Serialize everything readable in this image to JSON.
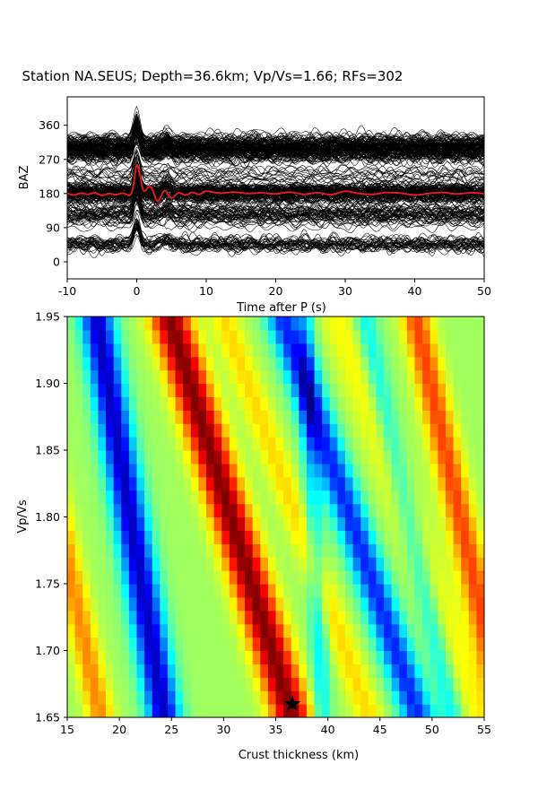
{
  "chart_data": [
    {
      "type": "line",
      "title": "Station NA.SEUS; Depth=36.6km; Vp/Vs=1.66; RFs=302",
      "xlabel": "Time after P (s)",
      "ylabel": "BAZ",
      "xlim": [
        -10,
        50
      ],
      "ylim": [
        -45,
        435
      ],
      "xticks": [
        -10,
        0,
        10,
        20,
        30,
        40,
        50
      ],
      "yticks": [
        0,
        90,
        180,
        270,
        360
      ],
      "trace_count": 302,
      "trace_color": "#000000",
      "stack_color": "#e41a1c",
      "stack_baseline": 180,
      "series": [
        {
          "x": [
            -10,
            -9,
            -8,
            -7,
            -6,
            -5,
            -4,
            -3,
            -2,
            -1,
            -0.5,
            0,
            0.5,
            1,
            2,
            3,
            4,
            5,
            6,
            7,
            8,
            9,
            10,
            12,
            14,
            16,
            18,
            20,
            22,
            24,
            26,
            28,
            30,
            32,
            34,
            36,
            38,
            40,
            42,
            44,
            46,
            48,
            50
          ],
          "values": [
            180,
            176,
            181,
            178,
            182,
            175,
            180,
            177,
            181,
            176,
            198,
            255,
            225,
            187,
            198,
            160,
            188,
            168,
            182,
            176,
            183,
            178,
            186,
            181,
            184,
            180,
            182,
            179,
            184,
            178,
            182,
            177,
            186,
            180,
            178,
            183,
            181,
            176,
            180,
            183,
            179,
            182,
            180
          ]
        }
      ]
    },
    {
      "type": "heatmap",
      "title": "",
      "xlabel": "Crust thickness (km)",
      "ylabel": "Vp/Vs",
      "xlim": [
        15,
        55
      ],
      "ylim": [
        1.65,
        1.95
      ],
      "xticks": [
        15,
        20,
        25,
        30,
        35,
        40,
        45,
        50,
        55
      ],
      "yticks": [
        1.65,
        1.7,
        1.75,
        1.8,
        1.85,
        1.9,
        1.95
      ],
      "colormap": "jet",
      "best_fit": {
        "thickness_km": 36.6,
        "vp_vs": 1.66
      },
      "ridges": [
        {
          "kind": "min",
          "h_at_165": 24.3,
          "h_at_195": 17.8,
          "width_km": 1.6,
          "strength": 1.0
        },
        {
          "kind": "max",
          "h_at_165": 36.6,
          "h_at_195": 24.8,
          "width_km": 1.9,
          "strength": 1.0
        },
        {
          "kind": "max",
          "h_at_165": 18.2,
          "h_at_195": 10.0,
          "width_km": 1.3,
          "strength": 0.45
        },
        {
          "kind": "min",
          "h_at_165": 48.7,
          "h_at_195": 35.6,
          "width_km": 1.6,
          "strength": 0.8
        },
        {
          "kind": "max",
          "h_at_165": 44.0,
          "h_at_195": 30.0,
          "width_km": 1.4,
          "strength": 0.28
        },
        {
          "kind": "min",
          "h_at_165": 39.5,
          "h_at_195": 37.8,
          "width_km": 0.9,
          "strength": 0.35
        },
        {
          "kind": "max",
          "h_at_165": 57.0,
          "h_at_195": 48.4,
          "width_km": 1.4,
          "strength": 0.6
        },
        {
          "kind": "min",
          "h_at_165": 52.0,
          "h_at_195": 43.5,
          "width_km": 1.1,
          "strength": 0.35
        },
        {
          "kind": "max",
          "h_at_165": 54.5,
          "h_at_195": 41.0,
          "width_km": 2.0,
          "strength": 0.2
        }
      ]
    }
  ]
}
